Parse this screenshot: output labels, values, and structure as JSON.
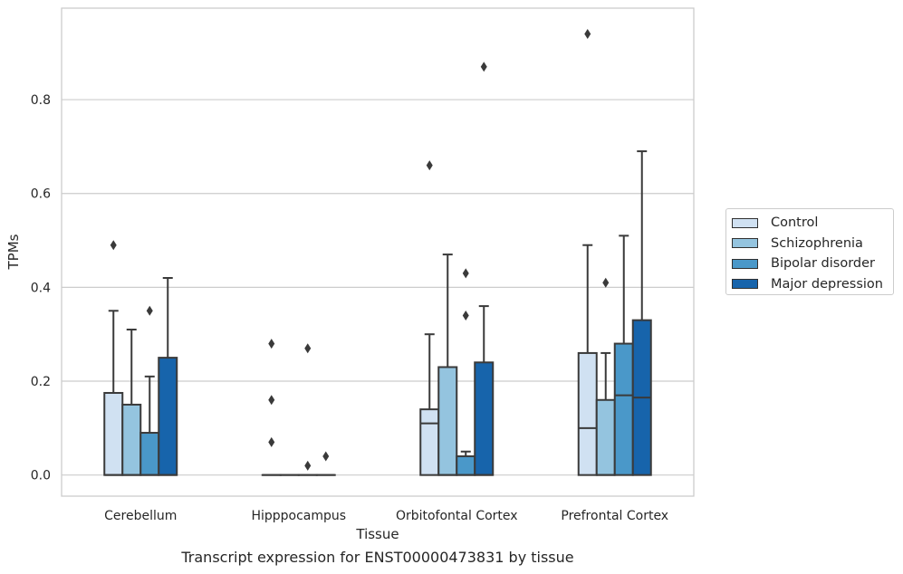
{
  "chart_data": {
    "type": "box",
    "xlabel": "Tissue",
    "ylabel": "TPMs",
    "caption": "Transcript expression for ENST00000473831 by tissue",
    "ylim": [
      -0.045,
      0.995
    ],
    "yticks": [
      0.0,
      0.2,
      0.4,
      0.6,
      0.8
    ],
    "ytick_labels": [
      "0.0",
      "0.2",
      "0.4",
      "0.6",
      "0.8"
    ],
    "grid": true,
    "legend_position": "right",
    "categories": [
      "Cerebellum",
      "Hipppocampus",
      "Orbitofontal Cortex",
      "Prefrontal Cortex"
    ],
    "series": [
      {
        "name": "Control",
        "color": "#d0e1f2",
        "boxes": [
          {
            "whislo": 0.0,
            "q1": 0.0,
            "med": 0.0,
            "q3": 0.175,
            "whishi": 0.35,
            "fliers": [
              0.49
            ]
          },
          {
            "whislo": 0.0,
            "q1": 0.0,
            "med": 0.0,
            "q3": 0.0,
            "whishi": 0.0,
            "fliers": [
              0.07,
              0.16,
              0.28
            ]
          },
          {
            "whislo": 0.0,
            "q1": 0.0,
            "med": 0.11,
            "q3": 0.14,
            "whishi": 0.3,
            "fliers": [
              0.66
            ]
          },
          {
            "whislo": 0.0,
            "q1": 0.0,
            "med": 0.1,
            "q3": 0.26,
            "whishi": 0.49,
            "fliers": [
              0.94
            ]
          }
        ]
      },
      {
        "name": "Schizophrenia",
        "color": "#94c4df",
        "boxes": [
          {
            "whislo": 0.0,
            "q1": 0.0,
            "med": 0.0,
            "q3": 0.15,
            "whishi": 0.31,
            "fliers": []
          },
          {
            "whislo": 0.0,
            "q1": 0.0,
            "med": 0.0,
            "q3": 0.0,
            "whishi": 0.0,
            "fliers": []
          },
          {
            "whislo": 0.0,
            "q1": 0.0,
            "med": 0.0,
            "q3": 0.23,
            "whishi": 0.47,
            "fliers": []
          },
          {
            "whislo": 0.0,
            "q1": 0.0,
            "med": 0.0,
            "q3": 0.16,
            "whishi": 0.26,
            "fliers": [
              0.41
            ]
          }
        ]
      },
      {
        "name": "Bipolar disorder",
        "color": "#4a98c9",
        "boxes": [
          {
            "whislo": 0.0,
            "q1": 0.0,
            "med": 0.0,
            "q3": 0.09,
            "whishi": 0.21,
            "fliers": [
              0.35
            ]
          },
          {
            "whislo": 0.0,
            "q1": 0.0,
            "med": 0.0,
            "q3": 0.0,
            "whishi": 0.0,
            "fliers": [
              0.02,
              0.27
            ]
          },
          {
            "whislo": 0.0,
            "q1": 0.0,
            "med": 0.0,
            "q3": 0.04,
            "whishi": 0.05,
            "fliers": [
              0.34,
              0.43
            ]
          },
          {
            "whislo": 0.0,
            "q1": 0.0,
            "med": 0.17,
            "q3": 0.28,
            "whishi": 0.51,
            "fliers": []
          }
        ]
      },
      {
        "name": "Major depression",
        "color": "#1764ab",
        "boxes": [
          {
            "whislo": 0.0,
            "q1": 0.0,
            "med": 0.0,
            "q3": 0.25,
            "whishi": 0.42,
            "fliers": []
          },
          {
            "whislo": 0.0,
            "q1": 0.0,
            "med": 0.0,
            "q3": 0.0,
            "whishi": 0.0,
            "fliers": [
              0.04
            ]
          },
          {
            "whislo": 0.0,
            "q1": 0.0,
            "med": 0.0,
            "q3": 0.24,
            "whishi": 0.36,
            "fliers": [
              0.87
            ]
          },
          {
            "whislo": 0.0,
            "q1": 0.0,
            "med": 0.165,
            "q3": 0.33,
            "whishi": 0.69,
            "fliers": []
          }
        ]
      }
    ]
  }
}
